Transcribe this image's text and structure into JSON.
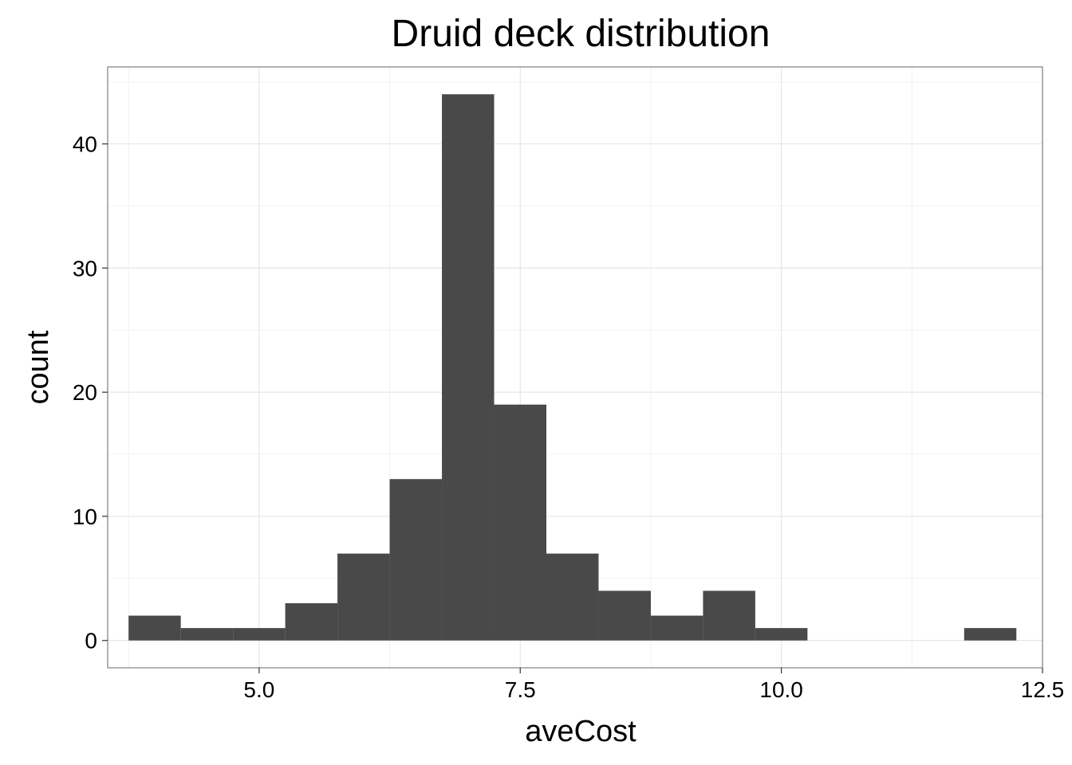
{
  "chart_data": {
    "type": "bar",
    "title": "Druid deck distribution",
    "xlabel": "aveCost",
    "ylabel": "count",
    "xlim": [
      3.55,
      12.5
    ],
    "ylim": [
      -2.2,
      46.2
    ],
    "x_ticks": [
      5.0,
      7.5,
      10.0,
      12.5
    ],
    "x_tick_labels": [
      "5.0",
      "7.5",
      "10.0",
      "12.5"
    ],
    "y_ticks": [
      0,
      10,
      20,
      30,
      40
    ],
    "y_tick_labels": [
      "0",
      "10",
      "20",
      "30",
      "40"
    ],
    "bin_width": 0.5,
    "bins": [
      {
        "x0": 3.75,
        "x1": 4.25,
        "count": 2
      },
      {
        "x0": 4.25,
        "x1": 4.75,
        "count": 1
      },
      {
        "x0": 4.75,
        "x1": 5.25,
        "count": 1
      },
      {
        "x0": 5.25,
        "x1": 5.75,
        "count": 3
      },
      {
        "x0": 5.75,
        "x1": 6.25,
        "count": 7
      },
      {
        "x0": 6.25,
        "x1": 6.75,
        "count": 13
      },
      {
        "x0": 6.75,
        "x1": 7.25,
        "count": 44
      },
      {
        "x0": 7.25,
        "x1": 7.75,
        "count": 19
      },
      {
        "x0": 7.75,
        "x1": 8.25,
        "count": 7
      },
      {
        "x0": 8.25,
        "x1": 8.75,
        "count": 4
      },
      {
        "x0": 8.75,
        "x1": 9.25,
        "count": 2
      },
      {
        "x0": 9.25,
        "x1": 9.75,
        "count": 4
      },
      {
        "x0": 9.75,
        "x1": 10.25,
        "count": 1
      },
      {
        "x0": 10.25,
        "x1": 10.75,
        "count": 0
      },
      {
        "x0": 10.75,
        "x1": 11.25,
        "count": 0
      },
      {
        "x0": 11.25,
        "x1": 11.75,
        "count": 0
      },
      {
        "x0": 11.75,
        "x1": 12.25,
        "count": 1
      }
    ],
    "grid": true,
    "colors": {
      "bar": "#494949",
      "grid_major": "#e5e5e5",
      "grid_minor": "#f2f2f2",
      "panel_border": "#7f7f7f"
    }
  }
}
